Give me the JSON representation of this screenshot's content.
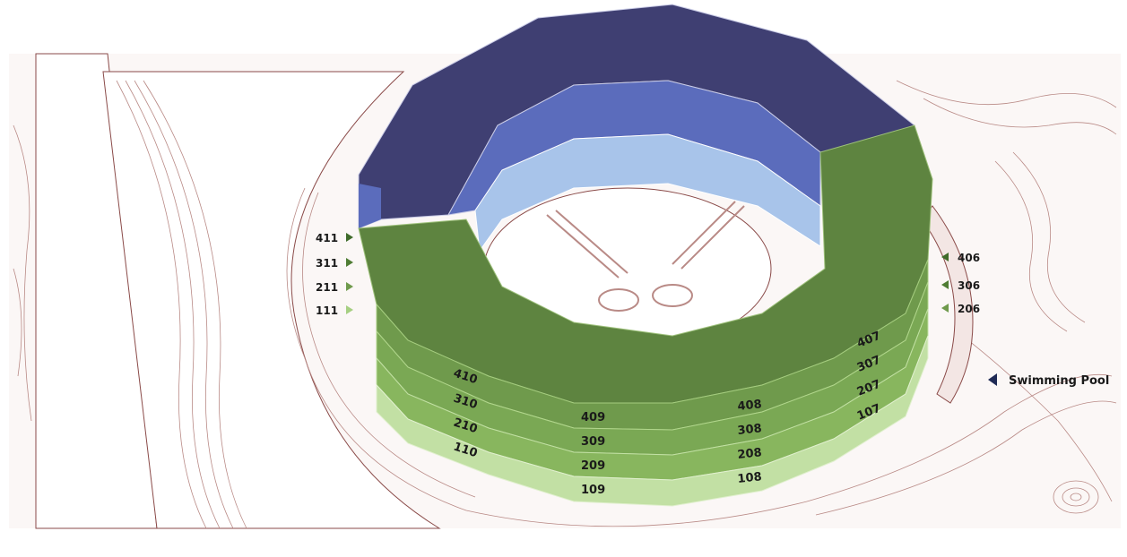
{
  "colors": {
    "navy_roof": "#3f3f72",
    "blue_mid": "#5b6cbc",
    "blue_light": "#a8c4ea",
    "green_dark": "#5e8440",
    "green_mid": "#6f9a4c",
    "green_light": "#88b65e",
    "green_pale": "#c2e0a4",
    "contour": "#b98a86",
    "marker_navy": "#1f2a55"
  },
  "floor_labels": {
    "left_stack": [
      "411",
      "311",
      "211",
      "111"
    ],
    "right_stack": [
      "406",
      "306",
      "206"
    ]
  },
  "segments": [
    {
      "floors": [
        "410",
        "310",
        "210",
        "110"
      ]
    },
    {
      "floors": [
        "409",
        "309",
        "209",
        "109"
      ]
    },
    {
      "floors": [
        "408",
        "308",
        "208",
        "108"
      ]
    },
    {
      "floors": [
        "407",
        "307",
        "207",
        "107"
      ]
    }
  ],
  "amenity": {
    "label": "Swimming Pool"
  }
}
